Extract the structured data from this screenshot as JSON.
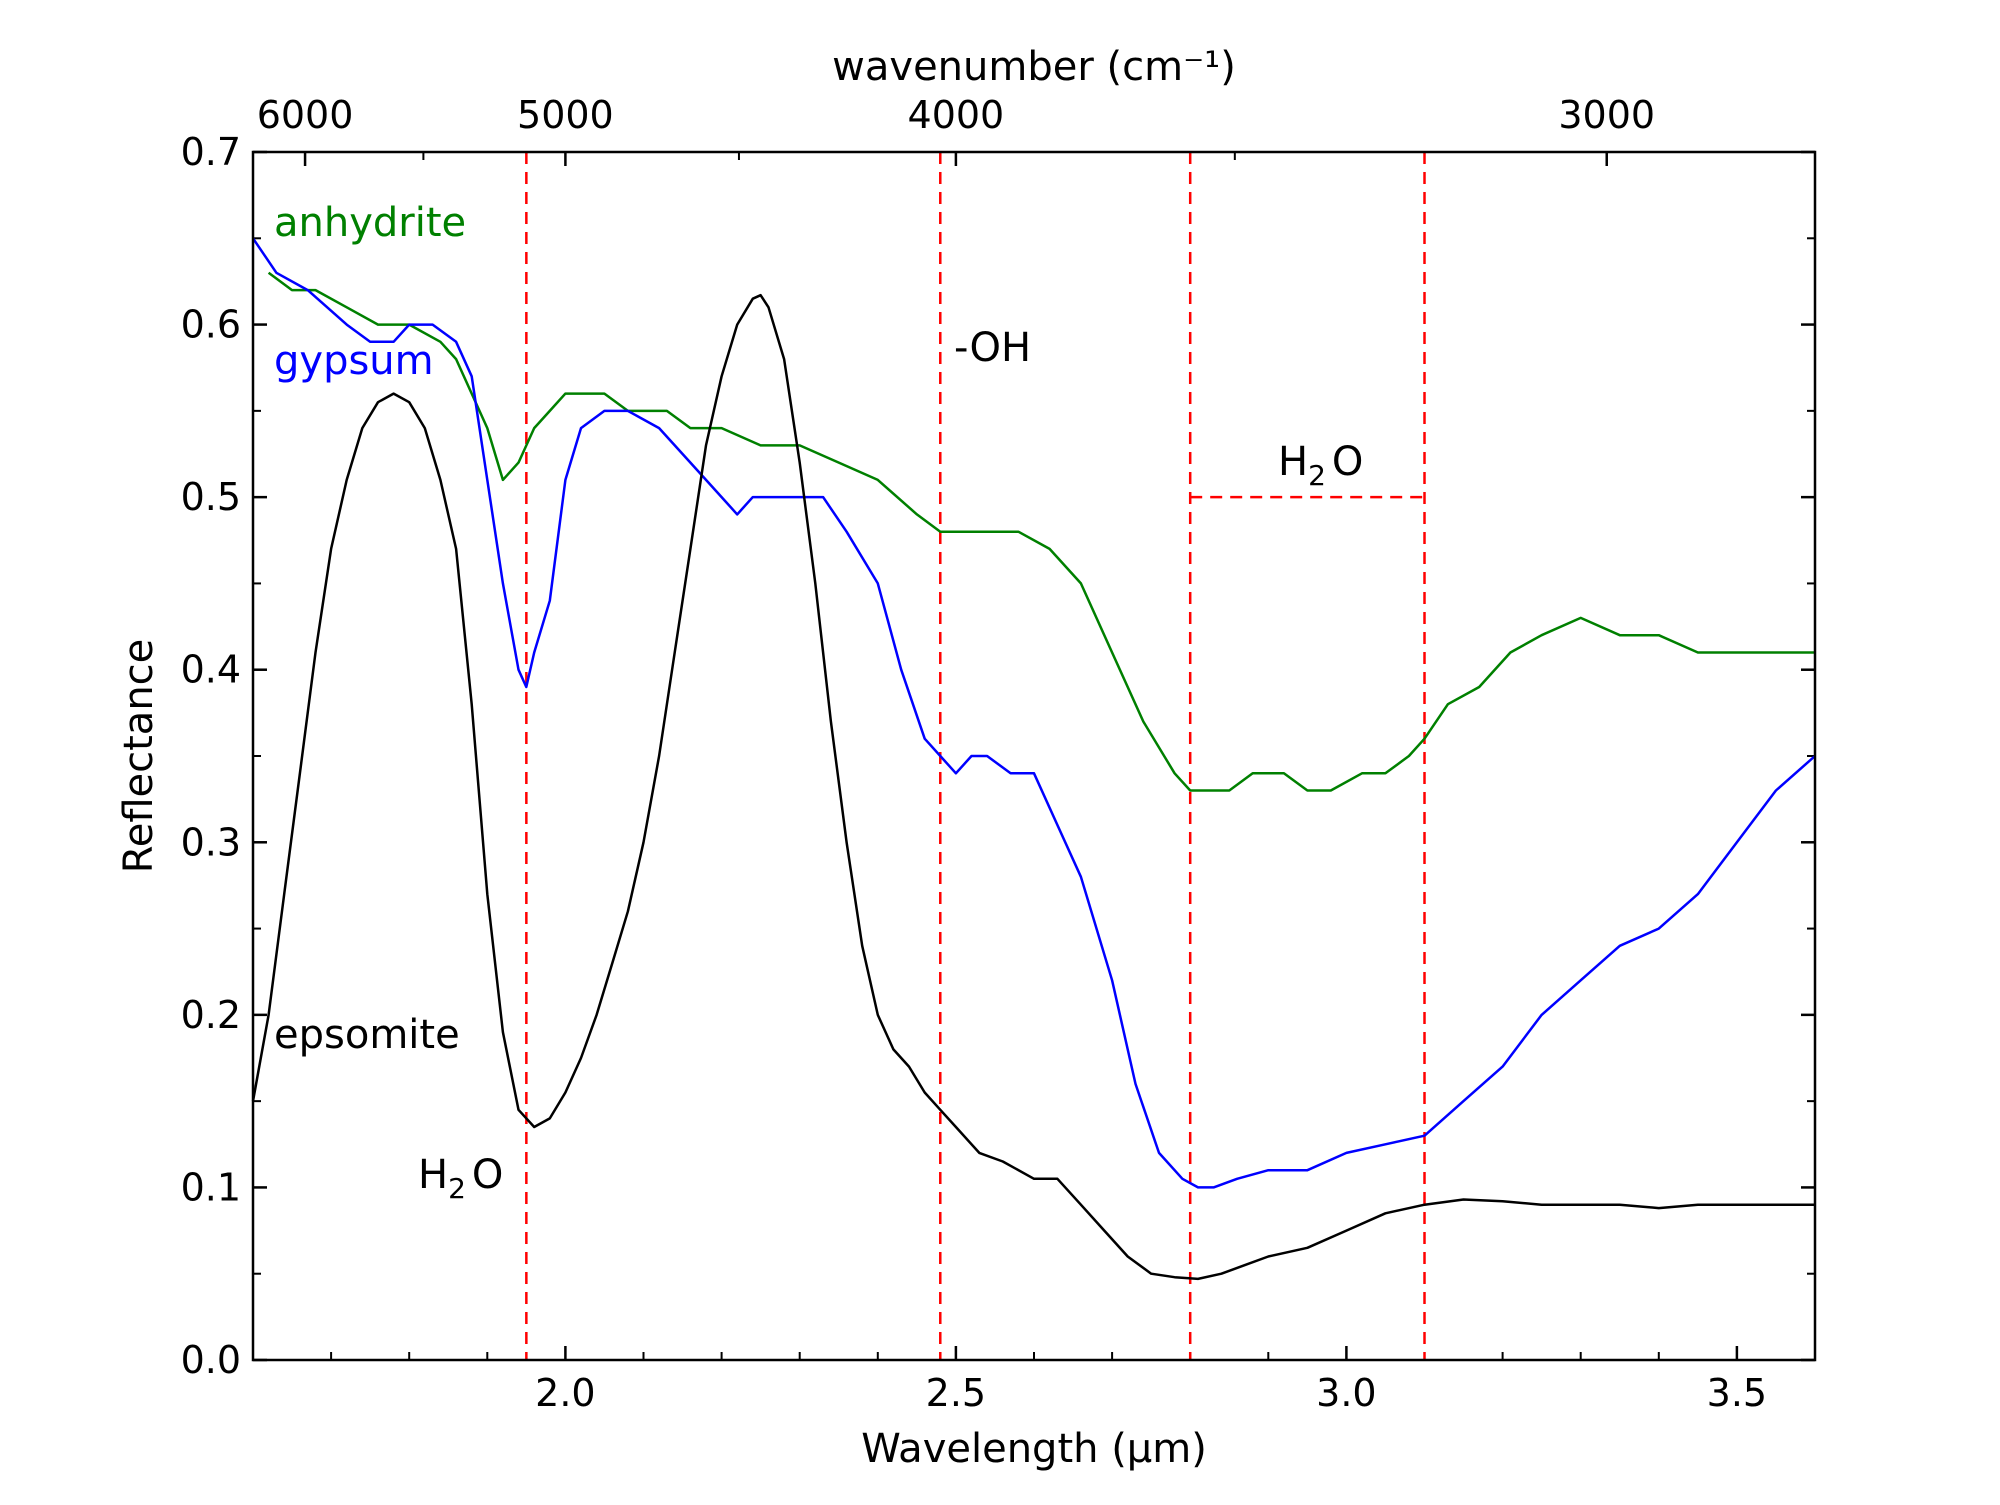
{
  "chart_data": {
    "type": "line",
    "xlabel": "Wavelength (μm)",
    "ylabel": "Reflectance",
    "x2label": "wavenumber (cm⁻¹)",
    "xlim": [
      1.6,
      3.6
    ],
    "ylim": [
      0.0,
      0.7
    ],
    "x_ticks": [
      "2.0",
      "2.5",
      "3.0",
      "3.5"
    ],
    "x_tick_values": [
      2.0,
      2.5,
      3.0,
      3.5
    ],
    "y_ticks": [
      "0.0",
      "0.1",
      "0.2",
      "0.3",
      "0.4",
      "0.5",
      "0.6",
      "0.7"
    ],
    "y_tick_values": [
      0.0,
      0.1,
      0.2,
      0.3,
      0.4,
      0.5,
      0.6,
      0.7
    ],
    "x2_ticks": [
      "6000",
      "5000",
      "4000",
      "3000"
    ],
    "x2_tick_values": [
      6000,
      5000,
      4000,
      3000
    ],
    "grid": false,
    "series": [
      {
        "name": "anhydrite",
        "color": "#008000",
        "x": [
          1.62,
          1.65,
          1.68,
          1.72,
          1.76,
          1.8,
          1.84,
          1.86,
          1.88,
          1.9,
          1.92,
          1.94,
          1.96,
          1.98,
          2.0,
          2.02,
          2.05,
          2.08,
          2.1,
          2.13,
          2.16,
          2.2,
          2.25,
          2.3,
          2.35,
          2.4,
          2.45,
          2.48,
          2.52,
          2.58,
          2.62,
          2.66,
          2.7,
          2.74,
          2.78,
          2.8,
          2.82,
          2.85,
          2.88,
          2.92,
          2.95,
          2.98,
          3.02,
          3.05,
          3.08,
          3.1,
          3.13,
          3.17,
          3.21,
          3.25,
          3.3,
          3.35,
          3.4,
          3.45,
          3.5,
          3.55,
          3.6
        ],
        "y": [
          0.63,
          0.62,
          0.62,
          0.61,
          0.6,
          0.6,
          0.59,
          0.58,
          0.56,
          0.54,
          0.51,
          0.52,
          0.54,
          0.55,
          0.56,
          0.56,
          0.56,
          0.55,
          0.55,
          0.55,
          0.54,
          0.54,
          0.53,
          0.53,
          0.52,
          0.51,
          0.49,
          0.48,
          0.48,
          0.48,
          0.47,
          0.45,
          0.41,
          0.37,
          0.34,
          0.33,
          0.33,
          0.33,
          0.34,
          0.34,
          0.33,
          0.33,
          0.34,
          0.34,
          0.35,
          0.36,
          0.38,
          0.39,
          0.41,
          0.42,
          0.43,
          0.42,
          0.42,
          0.41,
          0.41,
          0.41,
          0.41
        ]
      },
      {
        "name": "gypsum",
        "color": "#0000ff",
        "x": [
          1.6,
          1.63,
          1.67,
          1.72,
          1.75,
          1.78,
          1.8,
          1.83,
          1.86,
          1.88,
          1.9,
          1.92,
          1.94,
          1.95,
          1.96,
          1.98,
          2.0,
          2.02,
          2.05,
          2.08,
          2.12,
          2.16,
          2.2,
          2.22,
          2.24,
          2.26,
          2.28,
          2.3,
          2.33,
          2.36,
          2.4,
          2.43,
          2.46,
          2.48,
          2.5,
          2.52,
          2.54,
          2.57,
          2.6,
          2.63,
          2.66,
          2.7,
          2.73,
          2.76,
          2.79,
          2.81,
          2.83,
          2.86,
          2.9,
          2.95,
          3.0,
          3.05,
          3.1,
          3.15,
          3.2,
          3.25,
          3.3,
          3.35,
          3.4,
          3.45,
          3.5,
          3.55,
          3.6
        ],
        "y": [
          0.65,
          0.63,
          0.62,
          0.6,
          0.59,
          0.59,
          0.6,
          0.6,
          0.59,
          0.57,
          0.51,
          0.45,
          0.4,
          0.39,
          0.41,
          0.44,
          0.51,
          0.54,
          0.55,
          0.55,
          0.54,
          0.52,
          0.5,
          0.49,
          0.5,
          0.5,
          0.5,
          0.5,
          0.5,
          0.48,
          0.45,
          0.4,
          0.36,
          0.35,
          0.34,
          0.35,
          0.35,
          0.34,
          0.34,
          0.31,
          0.28,
          0.22,
          0.16,
          0.12,
          0.105,
          0.1,
          0.1,
          0.105,
          0.11,
          0.11,
          0.12,
          0.125,
          0.13,
          0.15,
          0.17,
          0.2,
          0.22,
          0.24,
          0.25,
          0.27,
          0.3,
          0.33,
          0.35
        ]
      },
      {
        "name": "epsomite",
        "color": "#000000",
        "x": [
          1.6,
          1.62,
          1.64,
          1.66,
          1.68,
          1.7,
          1.72,
          1.74,
          1.76,
          1.78,
          1.8,
          1.82,
          1.84,
          1.86,
          1.88,
          1.9,
          1.92,
          1.94,
          1.96,
          1.98,
          2.0,
          2.02,
          2.04,
          2.06,
          2.08,
          2.1,
          2.12,
          2.14,
          2.16,
          2.18,
          2.2,
          2.22,
          2.24,
          2.25,
          2.26,
          2.28,
          2.3,
          2.32,
          2.34,
          2.36,
          2.38,
          2.4,
          2.42,
          2.44,
          2.46,
          2.48,
          2.5,
          2.53,
          2.56,
          2.6,
          2.63,
          2.66,
          2.69,
          2.72,
          2.75,
          2.78,
          2.81,
          2.84,
          2.87,
          2.9,
          2.95,
          3.0,
          3.05,
          3.1,
          3.15,
          3.2,
          3.25,
          3.3,
          3.35,
          3.4,
          3.45,
          3.5,
          3.55,
          3.6
        ],
        "y": [
          0.15,
          0.2,
          0.27,
          0.34,
          0.41,
          0.47,
          0.51,
          0.54,
          0.555,
          0.56,
          0.555,
          0.54,
          0.51,
          0.47,
          0.38,
          0.27,
          0.19,
          0.145,
          0.135,
          0.14,
          0.155,
          0.175,
          0.2,
          0.23,
          0.26,
          0.3,
          0.35,
          0.41,
          0.47,
          0.53,
          0.57,
          0.6,
          0.615,
          0.617,
          0.61,
          0.58,
          0.52,
          0.45,
          0.37,
          0.3,
          0.24,
          0.2,
          0.18,
          0.17,
          0.155,
          0.145,
          0.135,
          0.12,
          0.115,
          0.105,
          0.105,
          0.09,
          0.075,
          0.06,
          0.05,
          0.048,
          0.047,
          0.05,
          0.055,
          0.06,
          0.065,
          0.075,
          0.085,
          0.09,
          0.093,
          0.092,
          0.09,
          0.09,
          0.09,
          0.088,
          0.09,
          0.09,
          0.09,
          0.09
        ]
      }
    ],
    "vertical_lines": [
      1.95,
      2.48,
      2.8,
      3.1
    ],
    "range_markers": [
      {
        "from": 2.8,
        "to": 3.1,
        "y": 0.5
      }
    ],
    "annotations": {
      "anhydrite": "anhydrite",
      "gypsum": "gypsum",
      "epsomite": "epsomite",
      "oh": "-OH",
      "h2o_range_main": "H",
      "h2o_range_sub": "2",
      "h2o_range_end": "O",
      "h2o_low_main": "H",
      "h2o_low_sub": "2",
      "h2o_low_end": "O"
    },
    "colors": {
      "vline": "#ff0000",
      "frame": "#000000"
    }
  }
}
